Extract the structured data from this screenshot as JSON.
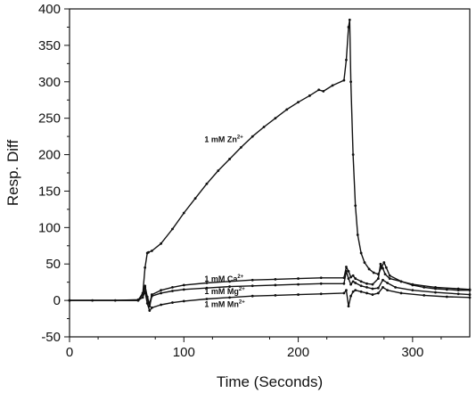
{
  "chart_data": {
    "type": "line",
    "title": "",
    "xlabel": "Time (Seconds)",
    "ylabel": "Resp. Diff",
    "xlim": [
      0,
      350
    ],
    "ylim": [
      -50,
      400
    ],
    "x_ticks": [
      0,
      100,
      200,
      300
    ],
    "y_ticks": [
      -50,
      0,
      50,
      100,
      150,
      200,
      250,
      300,
      350,
      400
    ],
    "grid": false,
    "legend": "none",
    "line_color": "#111111",
    "series": [
      {
        "annotation": {
          "text": "1 mM Zn",
          "sup": "2+",
          "x": 118,
          "y": 217
        },
        "x": [
          0,
          20,
          40,
          60,
          64,
          66,
          68,
          69,
          72,
          80,
          90,
          100,
          110,
          120,
          130,
          140,
          150,
          160,
          170,
          180,
          190,
          200,
          210,
          218,
          222,
          230,
          240,
          242,
          244,
          245,
          246,
          248,
          250,
          252,
          255,
          258,
          262,
          266,
          270,
          273,
          275,
          277,
          280,
          290,
          300,
          310,
          320,
          330,
          340,
          350
        ],
        "y": [
          0,
          0,
          0,
          1,
          8,
          45,
          65,
          66,
          68,
          78,
          98,
          120,
          140,
          160,
          178,
          194,
          210,
          225,
          238,
          250,
          262,
          272,
          281,
          289,
          287,
          295,
          302,
          330,
          375,
          385,
          300,
          200,
          130,
          90,
          65,
          52,
          43,
          38,
          36,
          46,
          52,
          45,
          34,
          26,
          21,
          18,
          16,
          15,
          14,
          14
        ]
      },
      {
        "annotation": {
          "text": "1 mM Ca",
          "sup": "2+",
          "x": 118,
          "y": 26
        },
        "x": [
          0,
          60,
          64,
          66,
          68,
          70,
          72,
          80,
          90,
          100,
          120,
          140,
          160,
          180,
          200,
          220,
          240,
          242,
          244,
          246,
          248,
          250,
          255,
          260,
          265,
          270,
          272,
          274,
          276,
          280,
          290,
          300,
          320,
          340,
          350
        ],
        "y": [
          0,
          0,
          10,
          20,
          5,
          -5,
          8,
          14,
          18,
          21,
          24,
          26,
          28,
          29,
          30,
          31,
          31,
          46,
          40,
          32,
          34,
          30,
          26,
          23,
          22,
          30,
          50,
          44,
          36,
          30,
          26,
          22,
          18,
          16,
          15
        ]
      },
      {
        "annotation": {
          "text": "1 mM Mg",
          "sup": "2+",
          "x": 118,
          "y": 9
        },
        "x": [
          0,
          60,
          64,
          66,
          68,
          70,
          72,
          80,
          90,
          100,
          120,
          140,
          160,
          180,
          200,
          220,
          240,
          242,
          244,
          246,
          248,
          250,
          255,
          260,
          265,
          270,
          274,
          278,
          285,
          300,
          320,
          340,
          350
        ],
        "y": [
          0,
          0,
          8,
          18,
          3,
          -8,
          6,
          10,
          13,
          15,
          17,
          19,
          20,
          21,
          22,
          23,
          23,
          40,
          30,
          22,
          26,
          24,
          20,
          18,
          16,
          17,
          28,
          24,
          18,
          14,
          11,
          9,
          8
        ]
      },
      {
        "annotation": {
          "text": "1 mM Mn",
          "sup": "2+",
          "x": 118,
          "y": -9
        },
        "x": [
          0,
          60,
          64,
          66,
          68,
          70,
          72,
          80,
          90,
          100,
          120,
          140,
          160,
          180,
          200,
          220,
          240,
          242,
          244,
          246,
          248,
          250,
          255,
          260,
          265,
          270,
          274,
          278,
          290,
          310,
          330,
          350
        ],
        "y": [
          0,
          0,
          4,
          12,
          -4,
          -14,
          -10,
          -6,
          -3,
          -1,
          2,
          4,
          6,
          7,
          8,
          9,
          10,
          14,
          -8,
          6,
          12,
          14,
          12,
          10,
          8,
          10,
          18,
          14,
          10,
          7,
          5,
          4
        ]
      }
    ]
  }
}
